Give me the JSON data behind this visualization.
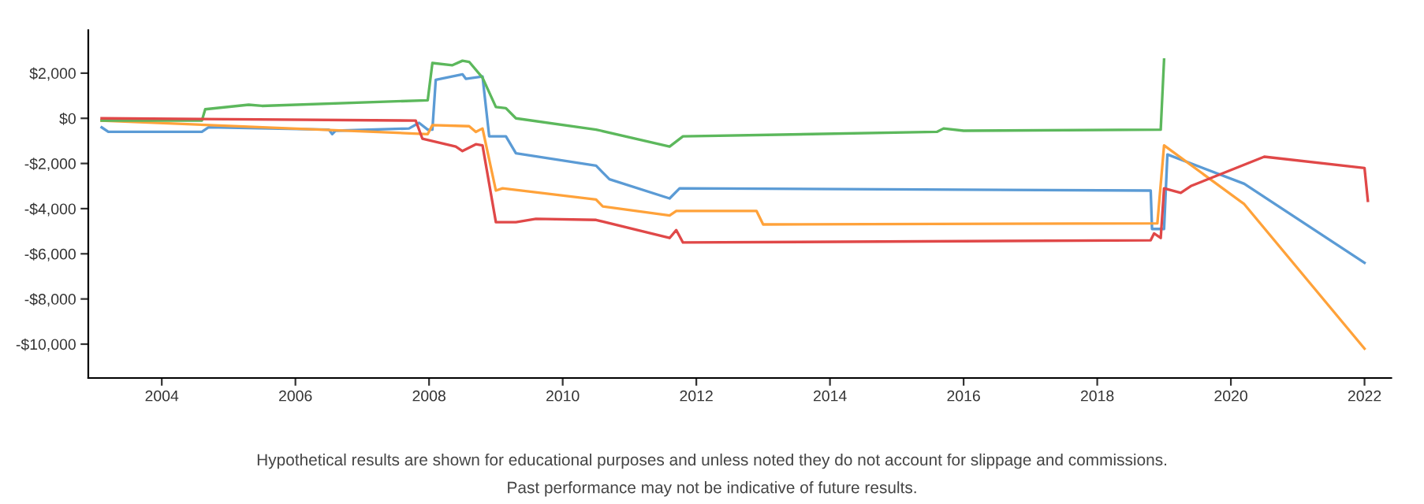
{
  "chart_data": {
    "type": "line",
    "series": [
      {
        "color": "#5b9bd5",
        "x": [
          2003.1,
          2003.2,
          2004.6,
          2004.7,
          2006.5,
          2006.55,
          2006.6,
          2007.7,
          2007.85,
          2007.98,
          2008.05,
          2008.1,
          2008.5,
          2008.55,
          2008.8,
          2008.9,
          2009.15,
          2009.3,
          2010.5,
          2010.7,
          2011.6,
          2011.75,
          2018.8,
          2018.82,
          2019.0,
          2019.05,
          2020.2,
          2022.0
        ],
        "values": [
          -400,
          -600,
          -600,
          -400,
          -500,
          -700,
          -550,
          -450,
          -200,
          -500,
          -500,
          1700,
          1950,
          1750,
          1850,
          -800,
          -800,
          -1550,
          -2100,
          -2700,
          -3550,
          -3100,
          -3200,
          -4900,
          -4900,
          -1600,
          -2900,
          -6400
        ]
      },
      {
        "color": "#ffa23a",
        "x": [
          2003.1,
          2007.98,
          2008.05,
          2008.6,
          2008.7,
          2008.8,
          2009.0,
          2009.1,
          2010.5,
          2010.6,
          2011.6,
          2011.7,
          2012.9,
          2013.0,
          2018.9,
          2019.0,
          2020.2,
          2022.0
        ],
        "values": [
          -100,
          -700,
          -300,
          -350,
          -600,
          -450,
          -3200,
          -3100,
          -3600,
          -3900,
          -4300,
          -4100,
          -4100,
          -4700,
          -4650,
          -1200,
          -3800,
          -10200
        ]
      },
      {
        "color": "#5cb85c",
        "x": [
          2003.1,
          2004.6,
          2004.65,
          2005.3,
          2005.5,
          2007.98,
          2008.05,
          2008.35,
          2008.5,
          2008.6,
          2008.8,
          2009.0,
          2009.15,
          2009.3,
          2010.5,
          2011.6,
          2011.8,
          2015.6,
          2015.7,
          2016.0,
          2018.95,
          2019.0
        ],
        "values": [
          -100,
          -100,
          400,
          600,
          550,
          800,
          2450,
          2350,
          2550,
          2500,
          1800,
          500,
          450,
          0,
          -500,
          -1250,
          -800,
          -600,
          -450,
          -550,
          -500,
          2600
        ]
      },
      {
        "color": "#e04848",
        "x": [
          2003.1,
          2007.8,
          2007.9,
          2008.4,
          2008.5,
          2008.7,
          2008.8,
          2009.0,
          2009.3,
          2009.6,
          2010.5,
          2011.6,
          2011.7,
          2011.8,
          2018.8,
          2018.85,
          2018.95,
          2019.0,
          2019.25,
          2019.4,
          2020.5,
          2022.0,
          2022.05
        ],
        "values": [
          0,
          -100,
          -900,
          -1250,
          -1450,
          -1150,
          -1200,
          -4600,
          -4600,
          -4450,
          -4500,
          -5300,
          -4950,
          -5500,
          -5400,
          -5100,
          -5300,
          -3100,
          -3300,
          -3000,
          -1700,
          -2200,
          -3650
        ]
      }
    ],
    "xlim": [
      2002.9,
      2022.4
    ],
    "xticks": [
      2004,
      2006,
      2008,
      2010,
      2012,
      2014,
      2016,
      2018,
      2020,
      2022
    ],
    "ylim": [
      -11500,
      3900
    ],
    "yticks": [
      {
        "value": 2000,
        "label": "$2,000"
      },
      {
        "value": 0,
        "label": "$0"
      },
      {
        "value": -2000,
        "label": "-$2,000"
      },
      {
        "value": -4000,
        "label": "-$4,000"
      },
      {
        "value": -6000,
        "label": "-$6,000"
      },
      {
        "value": -8000,
        "label": "-$8,000"
      },
      {
        "value": -10000,
        "label": "-$10,000"
      }
    ],
    "grid": false,
    "annotations": [
      "Hypothetical results are shown for educational purposes and unless noted they do not account for slippage and commissions.",
      "Past performance may not be indicative of future results."
    ]
  }
}
